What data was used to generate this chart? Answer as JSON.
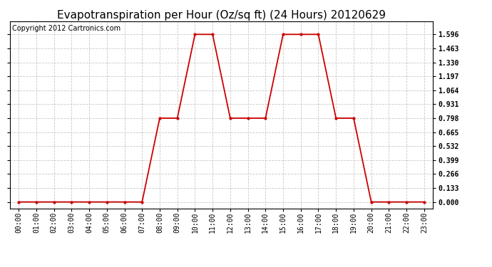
{
  "title": "Evapotranspiration per Hour (Oz/sq ft) (24 Hours) 20120629",
  "copyright": "Copyright 2012 Cartronics.com",
  "line_color": "#cc0000",
  "marker": "o",
  "marker_size": 2.5,
  "background_color": "#ffffff",
  "grid_color": "#c8c8c8",
  "hours": [
    0,
    1,
    2,
    3,
    4,
    5,
    6,
    7,
    8,
    9,
    10,
    11,
    12,
    13,
    14,
    15,
    16,
    17,
    18,
    19,
    20,
    21,
    22,
    23
  ],
  "values": [
    0.0,
    0.0,
    0.0,
    0.0,
    0.0,
    0.0,
    0.0,
    0.0,
    0.798,
    0.798,
    1.596,
    1.596,
    0.798,
    0.798,
    0.798,
    1.596,
    1.596,
    1.596,
    0.798,
    0.798,
    0.0,
    0.0,
    0.0,
    0.0
  ],
  "yticks": [
    0.0,
    0.133,
    0.266,
    0.399,
    0.532,
    0.665,
    0.798,
    0.931,
    1.064,
    1.197,
    1.33,
    1.463,
    1.596
  ],
  "ylim": [
    -0.06,
    1.72
  ],
  "xlim": [
    -0.5,
    23.5
  ],
  "title_fontsize": 11,
  "tick_fontsize": 7,
  "copyright_fontsize": 7,
  "linewidth": 1.3
}
